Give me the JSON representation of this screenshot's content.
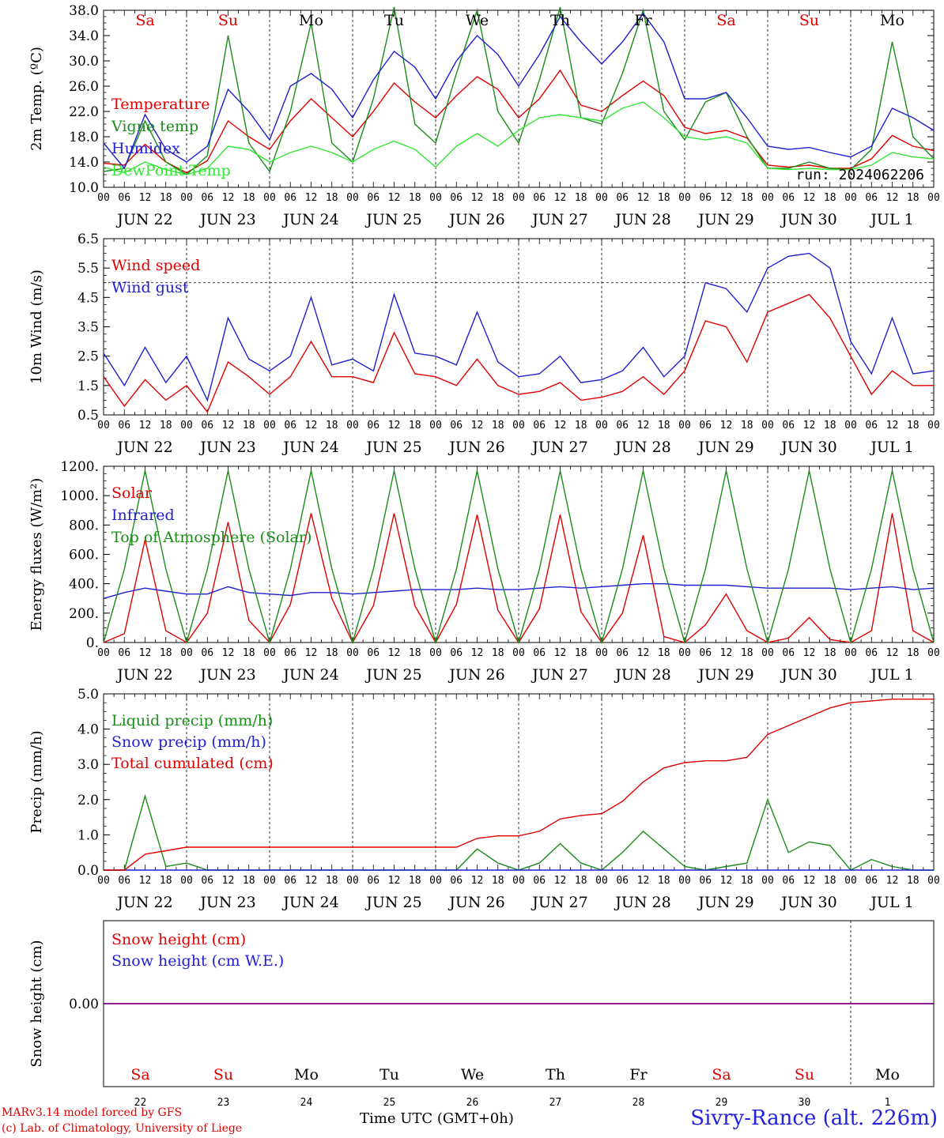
{
  "chart_data": [
    {
      "type": "line",
      "panel": "temperature",
      "ylabel": "2m Temp. (ºC)",
      "ylim": [
        10,
        38
      ],
      "y_ticks": [
        "10.0",
        "14.0",
        "18.0",
        "22.0",
        "26.0",
        "30.0",
        "34.0",
        "38.0"
      ],
      "y_tick_values": [
        10,
        14,
        18,
        22,
        26,
        30,
        34,
        38
      ],
      "annotation": "run: 2024062206",
      "x": [
        "Jun22 00",
        "Jun22 06",
        "Jun22 12",
        "Jun22 18",
        "Jun23 00",
        "Jun23 06",
        "Jun23 12",
        "Jun23 18",
        "Jun24 00",
        "Jun24 06",
        "Jun24 12",
        "Jun24 18",
        "Jun25 00",
        "Jun25 06",
        "Jun25 12",
        "Jun25 18",
        "Jun26 00",
        "Jun26 06",
        "Jun26 12",
        "Jun26 18",
        "Jun27 00",
        "Jun27 06",
        "Jun27 12",
        "Jun27 18",
        "Jun28 00",
        "Jun28 06",
        "Jun28 12",
        "Jun28 18",
        "Jun29 00",
        "Jun29 06",
        "Jun29 12",
        "Jun29 18",
        "Jun30 00",
        "Jun30 06",
        "Jun30 12",
        "Jun30 18",
        "Jul1 00",
        "Jul1 06",
        "Jul1 12",
        "Jul1 18",
        "Jul2 00"
      ],
      "series": [
        {
          "name": "Temperature",
          "color": "#e00000",
          "values": [
            13.8,
            13.5,
            16.8,
            14.0,
            12.3,
            14.2,
            20.5,
            18.0,
            16.0,
            20.5,
            24.0,
            21.0,
            18.0,
            22.0,
            26.5,
            23.5,
            21.0,
            24.5,
            27.5,
            25.5,
            21.0,
            24.0,
            28.5,
            23.0,
            22.0,
            24.5,
            26.8,
            24.5,
            19.5,
            18.5,
            19.0,
            17.8,
            13.5,
            13.2,
            13.5,
            13.0,
            13.0,
            14.5,
            18.2,
            16.5,
            15.8
          ]
        },
        {
          "name": "Vigne temp",
          "color": "#1a8c1a",
          "values": [
            12.5,
            13.0,
            20.5,
            14.0,
            12.0,
            15.0,
            34.0,
            17.0,
            12.5,
            22.0,
            36.0,
            17.0,
            14.0,
            24.0,
            38.5,
            20.0,
            17.0,
            28.0,
            38.0,
            22.0,
            17.0,
            27.0,
            38.5,
            21.0,
            20.0,
            28.0,
            38.0,
            22.0,
            17.5,
            23.5,
            25.0,
            18.0,
            13.0,
            13.0,
            14.0,
            13.0,
            12.8,
            16.0,
            33.0,
            18.0,
            14.5
          ]
        },
        {
          "name": "Humidex",
          "color": "#2020d0",
          "values": [
            17.0,
            13.0,
            21.5,
            16.0,
            14.0,
            16.5,
            25.5,
            22.0,
            17.5,
            26.0,
            28.0,
            25.5,
            21.0,
            27.0,
            31.5,
            29.0,
            24.0,
            30.0,
            34.0,
            31.0,
            26.0,
            31.0,
            37.0,
            33.0,
            29.5,
            33.0,
            37.5,
            33.0,
            24.0,
            24.0,
            25.0,
            21.0,
            16.5,
            16.0,
            16.3,
            15.5,
            14.8,
            16.5,
            22.5,
            21.0,
            19.0
          ]
        },
        {
          "name": "DewPoint Temp",
          "color": "#33e633",
          "values": [
            13.2,
            12.3,
            14.0,
            12.8,
            12.0,
            13.0,
            16.5,
            16.0,
            14.0,
            15.5,
            16.5,
            15.5,
            14.0,
            16.0,
            17.3,
            16.0,
            13.2,
            16.5,
            18.5,
            16.5,
            19.0,
            21.0,
            21.5,
            21.0,
            20.5,
            22.5,
            23.5,
            21.0,
            18.0,
            17.5,
            18.0,
            17.0,
            13.0,
            12.8,
            13.0,
            12.8,
            12.8,
            13.5,
            15.5,
            14.8,
            14.5
          ]
        }
      ]
    },
    {
      "type": "line",
      "panel": "wind",
      "ylabel": "10m Wind (m/s)",
      "ylim": [
        0.5,
        6.5
      ],
      "y_ticks": [
        "0.5",
        "1.5",
        "2.5",
        "3.5",
        "4.5",
        "5.5",
        "6.5"
      ],
      "y_tick_values": [
        0.5,
        1.5,
        2.5,
        3.5,
        4.5,
        5.5,
        6.5
      ],
      "reference_line": 5.0,
      "x": [
        "Jun22 00",
        "Jun22 06",
        "Jun22 12",
        "Jun22 18",
        "Jun23 00",
        "Jun23 06",
        "Jun23 12",
        "Jun23 18",
        "Jun24 00",
        "Jun24 06",
        "Jun24 12",
        "Jun24 18",
        "Jun25 00",
        "Jun25 06",
        "Jun25 12",
        "Jun25 18",
        "Jun26 00",
        "Jun26 06",
        "Jun26 12",
        "Jun26 18",
        "Jun27 00",
        "Jun27 06",
        "Jun27 12",
        "Jun27 18",
        "Jun28 00",
        "Jun28 06",
        "Jun28 12",
        "Jun28 18",
        "Jun29 00",
        "Jun29 06",
        "Jun29 12",
        "Jun29 18",
        "Jun30 00",
        "Jun30 06",
        "Jun30 12",
        "Jun30 18",
        "Jul1 00",
        "Jul1 06",
        "Jul1 12",
        "Jul1 18",
        "Jul2 00"
      ],
      "series": [
        {
          "name": "Wind speed",
          "color": "#e00000",
          "values": [
            1.8,
            0.8,
            1.7,
            1.0,
            1.5,
            0.6,
            2.3,
            1.8,
            1.2,
            1.8,
            3.0,
            1.8,
            1.8,
            1.6,
            3.3,
            1.9,
            1.8,
            1.5,
            2.4,
            1.5,
            1.2,
            1.3,
            1.6,
            1.0,
            1.1,
            1.3,
            1.8,
            1.2,
            2.0,
            3.7,
            3.5,
            2.3,
            4.0,
            4.3,
            4.6,
            3.8,
            2.5,
            1.2,
            2.0,
            1.5,
            1.5
          ]
        },
        {
          "name": "Wind gust",
          "color": "#2020d0",
          "values": [
            2.6,
            1.5,
            2.8,
            1.6,
            2.5,
            1.0,
            3.8,
            2.4,
            2.0,
            2.5,
            4.5,
            2.2,
            2.4,
            2.0,
            4.6,
            2.6,
            2.5,
            2.2,
            4.0,
            2.3,
            1.8,
            1.9,
            2.5,
            1.6,
            1.7,
            2.0,
            2.8,
            1.8,
            2.5,
            5.0,
            4.8,
            4.0,
            5.5,
            5.9,
            6.0,
            5.5,
            3.0,
            1.9,
            3.8,
            1.9,
            2.0
          ]
        }
      ]
    },
    {
      "type": "line",
      "panel": "energy",
      "ylabel": "Energy fluxes (W/m²)",
      "ylim": [
        0,
        1200
      ],
      "y_ticks": [
        "0.",
        "200.",
        "400.",
        "600.",
        "800.",
        "1000.",
        "1200."
      ],
      "y_tick_values": [
        0,
        200,
        400,
        600,
        800,
        1000,
        1200
      ],
      "x": [
        "Jun22 00",
        "Jun22 06",
        "Jun22 12",
        "Jun22 18",
        "Jun23 00",
        "Jun23 06",
        "Jun23 12",
        "Jun23 18",
        "Jun24 00",
        "Jun24 06",
        "Jun24 12",
        "Jun24 18",
        "Jun25 00",
        "Jun25 06",
        "Jun25 12",
        "Jun25 18",
        "Jun26 00",
        "Jun26 06",
        "Jun26 12",
        "Jun26 18",
        "Jun27 00",
        "Jun27 06",
        "Jun27 12",
        "Jun27 18",
        "Jun28 00",
        "Jun28 06",
        "Jun28 12",
        "Jun28 18",
        "Jun29 00",
        "Jun29 06",
        "Jun29 12",
        "Jun29 18",
        "Jun30 00",
        "Jun30 06",
        "Jun30 12",
        "Jun30 18",
        "Jul1 00",
        "Jul1 06",
        "Jul1 12",
        "Jul1 18",
        "Jul2 00"
      ],
      "series": [
        {
          "name": "Solar",
          "color": "#e00000",
          "values": [
            0,
            60,
            700,
            80,
            0,
            200,
            820,
            150,
            0,
            260,
            880,
            300,
            0,
            250,
            880,
            250,
            0,
            260,
            870,
            220,
            0,
            230,
            870,
            210,
            0,
            200,
            730,
            40,
            0,
            120,
            330,
            80,
            0,
            30,
            170,
            20,
            0,
            80,
            880,
            80,
            0
          ]
        },
        {
          "name": "Infrared",
          "color": "#2020d0",
          "values": [
            300,
            340,
            370,
            350,
            330,
            330,
            380,
            340,
            330,
            320,
            340,
            340,
            330,
            340,
            350,
            360,
            360,
            360,
            370,
            360,
            360,
            370,
            380,
            370,
            380,
            390,
            400,
            400,
            390,
            390,
            390,
            380,
            370,
            370,
            370,
            370,
            360,
            370,
            380,
            360,
            370
          ]
        },
        {
          "name": "Top of Atmosphere (Solar)",
          "color": "#1a8c1a",
          "values": [
            0,
            500,
            1170,
            500,
            0,
            500,
            1170,
            500,
            0,
            500,
            1170,
            500,
            0,
            500,
            1170,
            500,
            0,
            500,
            1170,
            500,
            0,
            500,
            1170,
            500,
            0,
            500,
            1170,
            500,
            0,
            500,
            1170,
            500,
            0,
            500,
            1170,
            500,
            0,
            500,
            1170,
            500,
            0
          ]
        }
      ]
    },
    {
      "type": "line",
      "panel": "precip",
      "ylabel": "Precip (mm/h)",
      "ylim": [
        0,
        5
      ],
      "y_ticks": [
        "0.0",
        "1.0",
        "2.0",
        "3.0",
        "4.0",
        "5.0"
      ],
      "y_tick_values": [
        0,
        1,
        2,
        3,
        4,
        5
      ],
      "x": [
        "Jun22 00",
        "Jun22 06",
        "Jun22 12",
        "Jun22 18",
        "Jun23 00",
        "Jun23 06",
        "Jun23 12",
        "Jun23 18",
        "Jun24 00",
        "Jun24 06",
        "Jun24 12",
        "Jun24 18",
        "Jun25 00",
        "Jun25 06",
        "Jun25 12",
        "Jun25 18",
        "Jun26 00",
        "Jun26 06",
        "Jun26 12",
        "Jun26 18",
        "Jun27 00",
        "Jun27 06",
        "Jun27 12",
        "Jun27 18",
        "Jun28 00",
        "Jun28 06",
        "Jun28 12",
        "Jun28 18",
        "Jun29 00",
        "Jun29 06",
        "Jun29 12",
        "Jun29 18",
        "Jun30 00",
        "Jun30 06",
        "Jun30 12",
        "Jun30 18",
        "Jul1 00",
        "Jul1 06",
        "Jul1 12",
        "Jul1 18",
        "Jul2 00"
      ],
      "series": [
        {
          "name": "Liquid precip (mm/h)",
          "color": "#1a8c1a",
          "values": [
            0,
            0,
            2.1,
            0.1,
            0.2,
            0,
            0,
            0,
            0,
            0,
            0,
            0,
            0,
            0,
            0,
            0,
            0,
            0,
            0.6,
            0.2,
            0,
            0.2,
            0.75,
            0.2,
            0,
            0.5,
            1.1,
            0.6,
            0.1,
            0,
            0.1,
            0.2,
            2.0,
            0.5,
            0.8,
            0.7,
            0,
            0.3,
            0.1,
            0,
            0
          ]
        },
        {
          "name": "Snow precip (mm/h)",
          "color": "#2020d0",
          "values": [
            0,
            0,
            0,
            0,
            0,
            0,
            0,
            0,
            0,
            0,
            0,
            0,
            0,
            0,
            0,
            0,
            0,
            0,
            0,
            0,
            0,
            0,
            0,
            0,
            0,
            0,
            0,
            0,
            0,
            0,
            0,
            0,
            0,
            0,
            0,
            0,
            0,
            0,
            0,
            0,
            0
          ]
        },
        {
          "name": "Total cumulated (cm)",
          "color": "#e00000",
          "values": [
            0,
            0,
            0.45,
            0.55,
            0.65,
            0.65,
            0.65,
            0.65,
            0.65,
            0.65,
            0.65,
            0.65,
            0.65,
            0.65,
            0.65,
            0.65,
            0.65,
            0.65,
            0.9,
            0.97,
            0.97,
            1.1,
            1.45,
            1.55,
            1.6,
            1.95,
            2.5,
            2.9,
            3.05,
            3.1,
            3.1,
            3.2,
            3.85,
            4.1,
            4.35,
            4.6,
            4.75,
            4.8,
            4.85,
            4.85,
            4.85
          ]
        }
      ]
    },
    {
      "type": "line",
      "panel": "snow",
      "ylabel": "Snow height (cm)",
      "ylim": [
        -1,
        1
      ],
      "y_ticks": [
        "0.00"
      ],
      "y_tick_values": [
        0
      ],
      "x": [
        "Jun22 00",
        "Jul2 00"
      ],
      "series": [
        {
          "name": "Snow height (cm)",
          "color": "#e00000",
          "values": [
            0,
            0
          ]
        },
        {
          "name": "Snow height (cm W.E.)",
          "color": "#2020d0",
          "values": [
            0,
            0
          ]
        }
      ]
    }
  ],
  "x_axis": {
    "hour_labels": [
      "00",
      "06",
      "12",
      "18"
    ],
    "final_hour_label": "00",
    "date_labels": [
      "JUN 22",
      "JUN 23",
      "JUN 24",
      "JUN 25",
      "JUN 26",
      "JUN 27",
      "JUN 28",
      "JUN 29",
      "JUN 30",
      "JUL  1"
    ],
    "weekdays": [
      "Sa",
      "Su",
      "Mo",
      "Tu",
      "We",
      "Th",
      "Fr",
      "Sa",
      "Su",
      "Mo"
    ],
    "weekday_colors": [
      "#e00000",
      "#e00000",
      "#000000",
      "#000000",
      "#000000",
      "#000000",
      "#000000",
      "#e00000",
      "#e00000",
      "#000000"
    ],
    "day_numbers": [
      "22",
      "23",
      "24",
      "25",
      "26",
      "27",
      "28",
      "29",
      "30",
      "1"
    ],
    "xlabel": "Time UTC (GMT+0h)"
  },
  "footer": {
    "model": "MARv3.14 model forced by GFS",
    "credit": "(c) Lab. of Climatology, University of Liege",
    "location": "Sivry-Rance (alt. 226m)"
  },
  "colors": {
    "red": "#e00000",
    "green": "#1a8c1a",
    "blue": "#2020d0",
    "lightgreen": "#33e633",
    "purple": "#800080"
  }
}
